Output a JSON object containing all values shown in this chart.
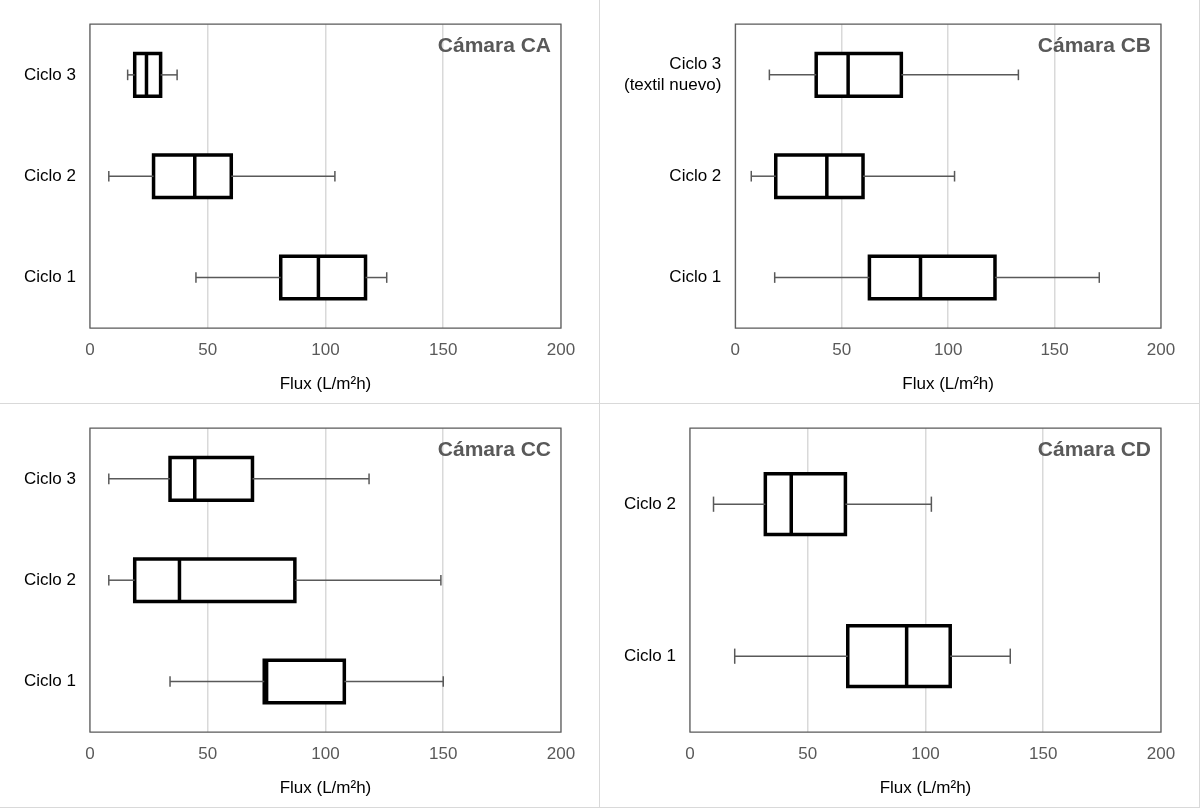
{
  "chart_data": [
    {
      "type": "box",
      "orientation": "horizontal",
      "title": "Cámara CA",
      "xlabel": "Flux (L/m²h)",
      "categories": [
        "Ciclo 3",
        "Ciclo 2",
        "Ciclo 1"
      ],
      "boxes": [
        {
          "low": 16,
          "q1": 19,
          "median": 24,
          "q3": 30,
          "high": 37
        },
        {
          "low": 8,
          "q1": 27,
          "median": 44.5,
          "q3": 60,
          "high": 104
        },
        {
          "low": 45,
          "q1": 81,
          "median": 97,
          "q3": 117,
          "high": 126
        }
      ],
      "xlim": [
        0,
        200
      ],
      "xticks": [
        0,
        50,
        100,
        150,
        200
      ],
      "grid": "x"
    },
    {
      "type": "box",
      "orientation": "horizontal",
      "title": "Cámara CB",
      "xlabel": "Flux (L/m²h)",
      "categories": [
        "Ciclo 3\n(textil nuevo)",
        "Ciclo 2",
        "Ciclo 1"
      ],
      "boxes": [
        {
          "low": 16,
          "q1": 38,
          "median": 53,
          "q3": 78,
          "high": 133
        },
        {
          "low": 7.5,
          "q1": 19,
          "median": 43,
          "q3": 60,
          "high": 103
        },
        {
          "low": 18.5,
          "q1": 63,
          "median": 87,
          "q3": 122,
          "high": 171
        }
      ],
      "xlim": [
        0,
        200
      ],
      "xticks": [
        0,
        50,
        100,
        150,
        200
      ],
      "grid": "x"
    },
    {
      "type": "box",
      "orientation": "horizontal",
      "title": "Cámara CC",
      "xlabel": "Flux (L/m²h)",
      "categories": [
        "Ciclo 3",
        "Ciclo 2",
        "Ciclo 1"
      ],
      "boxes": [
        {
          "low": 8,
          "q1": 34,
          "median": 44.5,
          "q3": 69,
          "high": 118.5
        },
        {
          "low": 8,
          "q1": 19,
          "median": 38,
          "q3": 87,
          "high": 149
        },
        {
          "low": 34,
          "q1": 74,
          "median": 75,
          "q3": 108,
          "high": 150
        }
      ],
      "xlim": [
        0,
        200
      ],
      "xticks": [
        0,
        50,
        100,
        150,
        200
      ],
      "grid": "x"
    },
    {
      "type": "box",
      "orientation": "horizontal",
      "title": "Cámara CD",
      "xlabel": "Flux (L/m²h)",
      "categories": [
        "Ciclo 2",
        "Ciclo 1"
      ],
      "boxes": [
        {
          "low": 10,
          "q1": 32,
          "median": 43,
          "q3": 66,
          "high": 102.5
        },
        {
          "low": 19,
          "q1": 67,
          "median": 92,
          "q3": 110.5,
          "high": 136
        }
      ],
      "xlim": [
        0,
        200
      ],
      "xticks": [
        0,
        50,
        100,
        150,
        200
      ],
      "grid": "x"
    }
  ]
}
